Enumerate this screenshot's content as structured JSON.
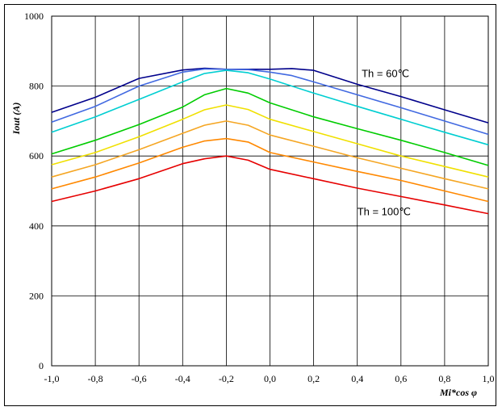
{
  "chart_data": {
    "type": "line",
    "xlabel": "Mi*cos φ",
    "ylabel": "Iout (A)",
    "xlim": [
      -1.0,
      1.0
    ],
    "ylim": [
      0,
      1000
    ],
    "x_ticks": [
      -1.0,
      -0.8,
      -0.6,
      -0.4,
      -0.2,
      0.0,
      0.2,
      0.4,
      0.6,
      0.8,
      1.0
    ],
    "x_tick_labels": [
      "-1,0",
      "-0,8",
      "-0,6",
      "-0,4",
      "-0,2",
      "0,0",
      "0,2",
      "0,4",
      "0,6",
      "0,8",
      "1,0"
    ],
    "y_ticks": [
      0,
      200,
      400,
      600,
      800,
      1000
    ],
    "y_tick_labels": [
      "0",
      "200",
      "400",
      "600",
      "800",
      "1000"
    ],
    "grid": true,
    "annotations": [
      {
        "text": "Th = 60℃",
        "x": 0.42,
        "y": 835
      },
      {
        "text": "Th = 100℃",
        "x": 0.4,
        "y": 440
      }
    ],
    "series": [
      {
        "color": "#00008b",
        "points": [
          [
            -1.0,
            725
          ],
          [
            -0.8,
            768
          ],
          [
            -0.6,
            822
          ],
          [
            -0.4,
            846
          ],
          [
            -0.3,
            851
          ],
          [
            -0.2,
            848
          ],
          [
            -0.1,
            848
          ],
          [
            0.0,
            848
          ],
          [
            0.1,
            850
          ],
          [
            0.2,
            845
          ],
          [
            0.4,
            805
          ],
          [
            0.6,
            770
          ],
          [
            0.8,
            732
          ],
          [
            1.0,
            695
          ]
        ]
      },
      {
        "color": "#4169e1",
        "points": [
          [
            -1.0,
            697
          ],
          [
            -0.8,
            742
          ],
          [
            -0.6,
            800
          ],
          [
            -0.4,
            840
          ],
          [
            -0.3,
            849
          ],
          [
            -0.2,
            848
          ],
          [
            -0.1,
            847
          ],
          [
            0.0,
            840
          ],
          [
            0.1,
            830
          ],
          [
            0.2,
            812
          ],
          [
            0.4,
            775
          ],
          [
            0.6,
            738
          ],
          [
            0.8,
            700
          ],
          [
            1.0,
            662
          ]
        ]
      },
      {
        "color": "#00ced1",
        "points": [
          [
            -1.0,
            668
          ],
          [
            -0.8,
            712
          ],
          [
            -0.6,
            762
          ],
          [
            -0.4,
            812
          ],
          [
            -0.3,
            836
          ],
          [
            -0.2,
            845
          ],
          [
            -0.1,
            838
          ],
          [
            0.0,
            820
          ],
          [
            0.2,
            780
          ],
          [
            0.4,
            742
          ],
          [
            0.6,
            705
          ],
          [
            0.8,
            668
          ],
          [
            1.0,
            632
          ]
        ]
      },
      {
        "color": "#00cc00",
        "points": [
          [
            -1.0,
            606
          ],
          [
            -0.8,
            645
          ],
          [
            -0.6,
            690
          ],
          [
            -0.4,
            740
          ],
          [
            -0.3,
            775
          ],
          [
            -0.2,
            793
          ],
          [
            -0.1,
            780
          ],
          [
            0.0,
            752
          ],
          [
            0.2,
            712
          ],
          [
            0.4,
            678
          ],
          [
            0.6,
            645
          ],
          [
            0.8,
            610
          ],
          [
            1.0,
            573
          ]
        ]
      },
      {
        "color": "#f0e000",
        "points": [
          [
            -1.0,
            575
          ],
          [
            -0.8,
            610
          ],
          [
            -0.6,
            655
          ],
          [
            -0.4,
            705
          ],
          [
            -0.3,
            732
          ],
          [
            -0.2,
            746
          ],
          [
            -0.1,
            733
          ],
          [
            0.0,
            705
          ],
          [
            0.2,
            670
          ],
          [
            0.4,
            635
          ],
          [
            0.6,
            600
          ],
          [
            0.8,
            570
          ],
          [
            1.0,
            540
          ]
        ]
      },
      {
        "color": "#f5a623",
        "points": [
          [
            -1.0,
            540
          ],
          [
            -0.8,
            575
          ],
          [
            -0.6,
            618
          ],
          [
            -0.4,
            665
          ],
          [
            -0.3,
            688
          ],
          [
            -0.2,
            700
          ],
          [
            -0.1,
            688
          ],
          [
            0.0,
            660
          ],
          [
            0.2,
            628
          ],
          [
            0.4,
            595
          ],
          [
            0.6,
            565
          ],
          [
            0.8,
            535
          ],
          [
            1.0,
            506
          ]
        ]
      },
      {
        "color": "#ff8800",
        "points": [
          [
            -1.0,
            506
          ],
          [
            -0.8,
            540
          ],
          [
            -0.6,
            580
          ],
          [
            -0.4,
            625
          ],
          [
            -0.3,
            643
          ],
          [
            -0.2,
            650
          ],
          [
            -0.1,
            640
          ],
          [
            0.0,
            610
          ],
          [
            0.2,
            583
          ],
          [
            0.4,
            556
          ],
          [
            0.6,
            530
          ],
          [
            0.8,
            500
          ],
          [
            1.0,
            470
          ]
        ]
      },
      {
        "color": "#e60000",
        "points": [
          [
            -1.0,
            470
          ],
          [
            -0.8,
            500
          ],
          [
            -0.6,
            535
          ],
          [
            -0.4,
            578
          ],
          [
            -0.3,
            592
          ],
          [
            -0.2,
            600
          ],
          [
            -0.1,
            588
          ],
          [
            0.0,
            562
          ],
          [
            0.2,
            535
          ],
          [
            0.4,
            508
          ],
          [
            0.6,
            484
          ],
          [
            0.8,
            460
          ],
          [
            1.0,
            435
          ]
        ]
      }
    ]
  }
}
